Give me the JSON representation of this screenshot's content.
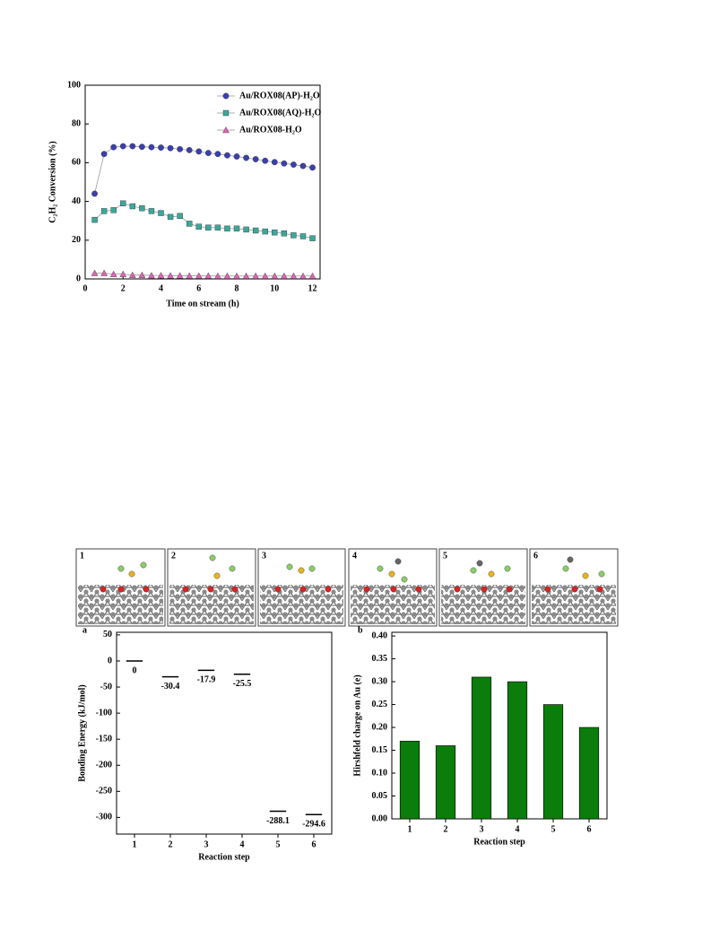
{
  "chart_data": [
    {
      "type": "line",
      "x_label": "Time on stream (h)",
      "y_label": "C₂H₂ Conversion (%)",
      "xlim": [
        0,
        12.4
      ],
      "xticks": [
        0,
        2,
        4,
        6,
        8,
        10,
        12
      ],
      "ylim": [
        0,
        100
      ],
      "yticks": [
        0,
        20,
        40,
        60,
        80,
        100
      ],
      "legend": "upper right",
      "x": [
        0.5,
        1,
        1.5,
        2,
        2.5,
        3,
        3.5,
        4,
        4.5,
        5,
        5.5,
        6,
        6.5,
        7,
        7.5,
        8,
        8.5,
        9,
        9.5,
        10,
        10.5,
        11,
        11.5,
        12
      ],
      "series": [
        {
          "name": "Au/ROX08(AP)-H₂O",
          "color": "#3b3fae",
          "marker": "circle",
          "values": [
            44,
            64.5,
            68,
            68.5,
            68.5,
            68.2,
            68,
            67.8,
            67.5,
            67,
            66.5,
            65.8,
            65,
            64.5,
            63.8,
            63.2,
            62.5,
            61.8,
            61,
            60.3,
            59.6,
            59,
            58.3,
            57.5
          ]
        },
        {
          "name": "Au/ROX08(AQ)-H₂O",
          "color": "#3aa89a",
          "marker": "square",
          "values": [
            30.5,
            35,
            35.5,
            39,
            37.5,
            36.5,
            35,
            34,
            32,
            32.5,
            28.5,
            27,
            26.5,
            26.5,
            26,
            26,
            25.5,
            25,
            24.5,
            24,
            23.5,
            22.5,
            22,
            21
          ]
        },
        {
          "name": "Au/ROX08-H₂O",
          "color": "#e063b5",
          "marker": "triangle",
          "values": [
            3,
            3,
            2.5,
            2.5,
            2,
            2,
            1.8,
            1.8,
            1.7,
            1.7,
            1.6,
            1.6,
            1.6,
            1.5,
            1.5,
            1.5,
            1.5,
            1.5,
            1.5,
            1.5,
            1.5,
            1.5,
            1.5,
            1.5
          ]
        }
      ]
    },
    {
      "type": "level",
      "panel_label": "a",
      "x_label": "Reaction step",
      "y_label": "Bonding Energy (kJ/mol)",
      "categories": [
        "1",
        "2",
        "3",
        "4",
        "5",
        "6"
      ],
      "values": [
        0,
        -30.4,
        -17.9,
        -25.5,
        -288.1,
        -294.6
      ],
      "color": "#000000",
      "ylim": [
        -332,
        55
      ],
      "yticks": [
        50,
        0,
        -50,
        -100,
        -150,
        -200,
        -250,
        -300
      ]
    },
    {
      "type": "bar",
      "panel_label": "b",
      "x_label": "Reaction step",
      "y_label": "Hirshfeld charge on Au (e)",
      "categories": [
        "1",
        "2",
        "3",
        "4",
        "5",
        "6"
      ],
      "values": [
        0.17,
        0.16,
        0.31,
        0.3,
        0.25,
        0.2
      ],
      "color": "#0b7d0b",
      "ylim": [
        0,
        0.408
      ],
      "yticks": [
        {
          "value": 0,
          "label": "0.00"
        },
        {
          "value": 0.05,
          "label": "0.05"
        },
        {
          "value": 0.1,
          "label": "0.10"
        },
        {
          "value": 0.15,
          "label": "0.15"
        },
        {
          "value": 0.2,
          "label": "0.20"
        },
        {
          "value": 0.25,
          "label": "0.25"
        },
        {
          "value": 0.3,
          "label": "0.30"
        },
        {
          "value": 0.35,
          "label": "0.35"
        },
        {
          "value": 0.4,
          "label": "0.40"
        }
      ]
    }
  ],
  "structures": {
    "labels": [
      "1",
      "2",
      "3",
      "4",
      "5",
      "6"
    ]
  }
}
